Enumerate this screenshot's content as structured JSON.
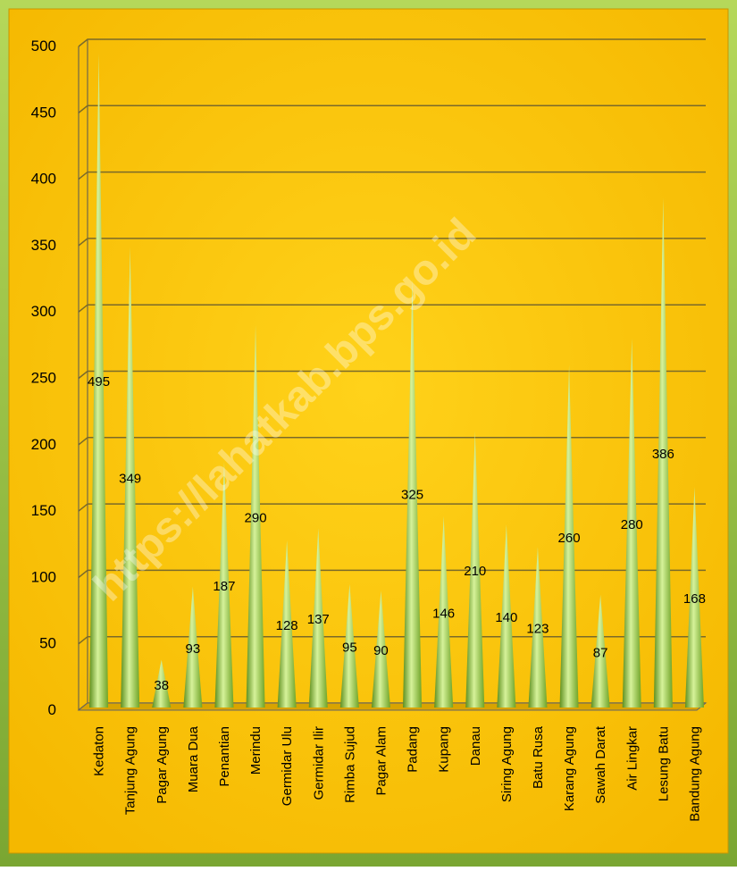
{
  "chart_data": {
    "type": "bar",
    "categories": [
      "Kedaton",
      "Tanjung Agung",
      "Pagar Agung",
      "Muara Dua",
      "Penantian",
      "Merindu",
      "Germidar Ulu",
      "Germidar Ilir",
      "Rimba Sujud",
      "Pagar Alam",
      "Padang",
      "Kupang",
      "Danau",
      "Siring Agung",
      "Batu Rusa",
      "Karang Agung",
      "Sawah Darat",
      "Air Lingkar",
      "Lesung Batu",
      "Bandung Agung"
    ],
    "values": [
      495,
      349,
      38,
      93,
      187,
      290,
      128,
      137,
      95,
      90,
      325,
      146,
      210,
      140,
      123,
      260,
      87,
      280,
      386,
      168
    ],
    "color": "#8cc63f",
    "ylim": [
      0,
      500
    ],
    "yticks": [
      0,
      50,
      100,
      150,
      200,
      250,
      300,
      350,
      400,
      450,
      500
    ],
    "grid": true,
    "watermark": "https://lahatkab.bps.go.id"
  }
}
